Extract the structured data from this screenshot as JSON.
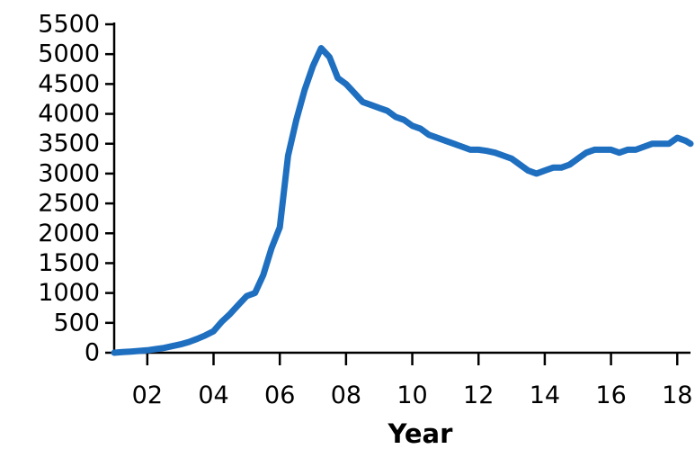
{
  "chart_data": {
    "type": "line",
    "title": "",
    "xlabel": "Year",
    "ylabel": "",
    "xlim": [
      2001,
      2018.4
    ],
    "ylim": [
      0,
      5500
    ],
    "grid": false,
    "legend": "none",
    "x_ticks": [
      {
        "value": 2002,
        "label": "02"
      },
      {
        "value": 2004,
        "label": "04"
      },
      {
        "value": 2006,
        "label": "06"
      },
      {
        "value": 2008,
        "label": "08"
      },
      {
        "value": 2010,
        "label": "10"
      },
      {
        "value": 2012,
        "label": "12"
      },
      {
        "value": 2014,
        "label": "14"
      },
      {
        "value": 2016,
        "label": "16"
      },
      {
        "value": 2018,
        "label": "18"
      }
    ],
    "y_ticks": [
      {
        "value": 0,
        "label": "0"
      },
      {
        "value": 500,
        "label": "500"
      },
      {
        "value": 1000,
        "label": "1000"
      },
      {
        "value": 1500,
        "label": "1500"
      },
      {
        "value": 2000,
        "label": "2000"
      },
      {
        "value": 2500,
        "label": "2500"
      },
      {
        "value": 3000,
        "label": "3000"
      },
      {
        "value": 3500,
        "label": "3500"
      },
      {
        "value": 4000,
        "label": "4000"
      },
      {
        "value": 4500,
        "label": "4500"
      },
      {
        "value": 5000,
        "label": "5000"
      },
      {
        "value": 5500,
        "label": "5500"
      }
    ],
    "series": [
      {
        "color": "#1f6fc0",
        "x": [
          2001.0,
          2001.25,
          2001.5,
          2001.75,
          2002.0,
          2002.25,
          2002.5,
          2002.75,
          2003.0,
          2003.25,
          2003.5,
          2003.75,
          2004.0,
          2004.25,
          2004.5,
          2004.75,
          2005.0,
          2005.25,
          2005.5,
          2005.75,
          2006.0,
          2006.25,
          2006.5,
          2006.75,
          2007.0,
          2007.25,
          2007.5,
          2007.75,
          2008.0,
          2008.25,
          2008.5,
          2008.75,
          2009.0,
          2009.25,
          2009.5,
          2009.75,
          2010.0,
          2010.25,
          2010.5,
          2010.75,
          2011.0,
          2011.25,
          2011.5,
          2011.75,
          2012.0,
          2012.25,
          2012.5,
          2012.75,
          2013.0,
          2013.25,
          2013.5,
          2013.75,
          2014.0,
          2014.25,
          2014.5,
          2014.75,
          2015.0,
          2015.25,
          2015.5,
          2015.75,
          2016.0,
          2016.25,
          2016.5,
          2016.75,
          2017.0,
          2017.25,
          2017.5,
          2017.75,
          2018.0,
          2018.25,
          2018.4
        ],
        "y": [
          0,
          10,
          20,
          30,
          40,
          60,
          80,
          110,
          140,
          180,
          230,
          290,
          360,
          520,
          650,
          800,
          950,
          1000,
          1300,
          1750,
          2100,
          3300,
          3900,
          4400,
          4800,
          5100,
          4950,
          4600,
          4500,
          4350,
          4200,
          4150,
          4100,
          4050,
          3950,
          3900,
          3800,
          3750,
          3650,
          3600,
          3550,
          3500,
          3450,
          3400,
          3400,
          3380,
          3350,
          3300,
          3250,
          3150,
          3050,
          3000,
          3050,
          3100,
          3100,
          3150,
          3250,
          3350,
          3400,
          3400,
          3400,
          3350,
          3400,
          3400,
          3450,
          3500,
          3500,
          3500,
          3600,
          3550,
          3500
        ]
      }
    ]
  }
}
